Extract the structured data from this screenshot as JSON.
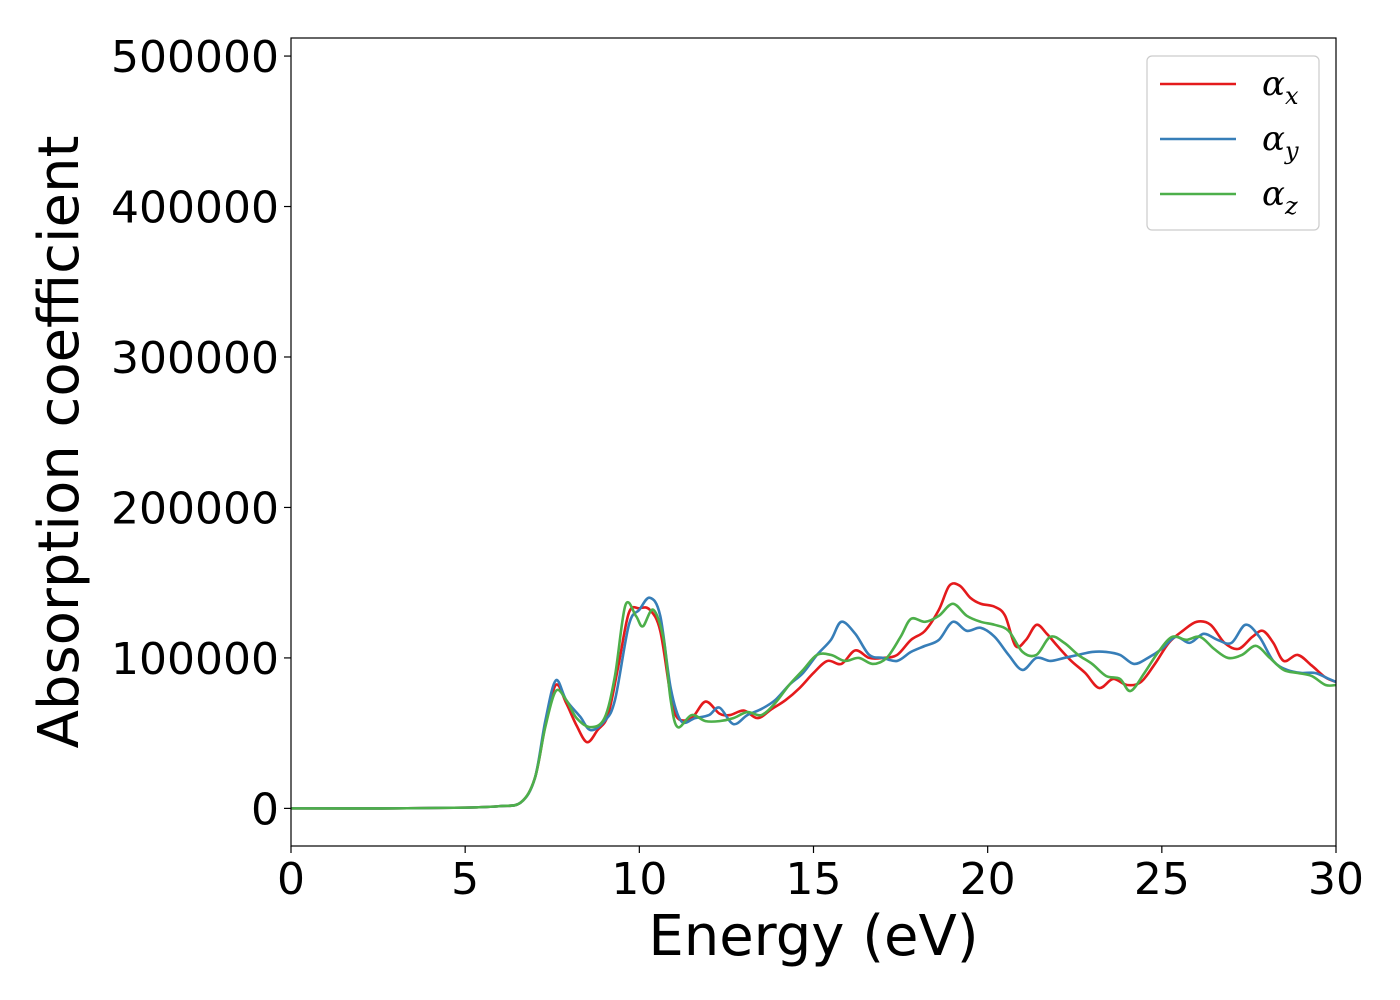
{
  "chart_data": {
    "type": "line",
    "xlabel": "Energy (eV)",
    "ylabel": "Absorption coefficient",
    "xlim": [
      0,
      30
    ],
    "ylim": [
      -25000,
      512000
    ],
    "xticks": [
      0,
      5,
      10,
      15,
      20,
      25,
      30
    ],
    "xtick_labels": [
      "0",
      "5",
      "10",
      "15",
      "20",
      "25",
      "30"
    ],
    "yticks": [
      0,
      100000,
      200000,
      300000,
      400000,
      500000
    ],
    "ytick_labels": [
      "0",
      "100000",
      "200000",
      "300000",
      "400000",
      "500000"
    ],
    "grid": false,
    "legend_position": "upper-right",
    "series": [
      {
        "name": "α",
        "subscript": "x",
        "color": "#e41a1c",
        "points": [
          [
            0,
            0
          ],
          [
            3,
            0
          ],
          [
            5,
            500
          ],
          [
            6,
            1500
          ],
          [
            6.6,
            4000
          ],
          [
            7.0,
            20000
          ],
          [
            7.3,
            55000
          ],
          [
            7.6,
            82000
          ],
          [
            7.9,
            70000
          ],
          [
            8.2,
            55000
          ],
          [
            8.5,
            44000
          ],
          [
            8.8,
            52000
          ],
          [
            9.1,
            62000
          ],
          [
            9.4,
            95000
          ],
          [
            9.7,
            130000
          ],
          [
            10.0,
            133000
          ],
          [
            10.3,
            132000
          ],
          [
            10.6,
            118000
          ],
          [
            10.9,
            75000
          ],
          [
            11.1,
            60000
          ],
          [
            11.5,
            60000
          ],
          [
            11.9,
            71000
          ],
          [
            12.3,
            63000
          ],
          [
            12.6,
            62000
          ],
          [
            13.0,
            65000
          ],
          [
            13.4,
            60000
          ],
          [
            13.8,
            66000
          ],
          [
            14.2,
            72000
          ],
          [
            14.6,
            80000
          ],
          [
            15.0,
            90000
          ],
          [
            15.4,
            98000
          ],
          [
            15.8,
            96000
          ],
          [
            16.2,
            105000
          ],
          [
            16.6,
            100000
          ],
          [
            17.0,
            100000
          ],
          [
            17.4,
            102000
          ],
          [
            17.8,
            112000
          ],
          [
            18.2,
            118000
          ],
          [
            18.6,
            132000
          ],
          [
            18.9,
            148000
          ],
          [
            19.2,
            148000
          ],
          [
            19.5,
            140000
          ],
          [
            19.8,
            136000
          ],
          [
            20.2,
            134000
          ],
          [
            20.5,
            128000
          ],
          [
            20.8,
            108000
          ],
          [
            21.1,
            112000
          ],
          [
            21.4,
            122000
          ],
          [
            21.7,
            116000
          ],
          [
            22.0,
            108000
          ],
          [
            22.4,
            98000
          ],
          [
            22.8,
            90000
          ],
          [
            23.2,
            80000
          ],
          [
            23.6,
            86000
          ],
          [
            24.0,
            82000
          ],
          [
            24.4,
            84000
          ],
          [
            24.8,
            96000
          ],
          [
            25.2,
            110000
          ],
          [
            25.6,
            118000
          ],
          [
            26.0,
            124000
          ],
          [
            26.4,
            122000
          ],
          [
            26.8,
            110000
          ],
          [
            27.2,
            106000
          ],
          [
            27.6,
            114000
          ],
          [
            27.9,
            118000
          ],
          [
            28.2,
            110000
          ],
          [
            28.5,
            98000
          ],
          [
            28.9,
            102000
          ],
          [
            29.3,
            95000
          ],
          [
            29.7,
            87000
          ],
          [
            30,
            84000
          ]
        ]
      },
      {
        "name": "α",
        "subscript": "y",
        "color": "#377eb8",
        "points": [
          [
            0,
            0
          ],
          [
            3,
            0
          ],
          [
            5,
            500
          ],
          [
            6,
            1500
          ],
          [
            6.6,
            4000
          ],
          [
            7.0,
            20000
          ],
          [
            7.3,
            58000
          ],
          [
            7.6,
            85000
          ],
          [
            7.9,
            72000
          ],
          [
            8.3,
            61000
          ],
          [
            8.6,
            52000
          ],
          [
            9.0,
            58000
          ],
          [
            9.3,
            72000
          ],
          [
            9.7,
            122000
          ],
          [
            10.0,
            132000
          ],
          [
            10.3,
            140000
          ],
          [
            10.6,
            128000
          ],
          [
            10.9,
            80000
          ],
          [
            11.2,
            58000
          ],
          [
            11.6,
            60000
          ],
          [
            12.0,
            62000
          ],
          [
            12.3,
            67000
          ],
          [
            12.7,
            56000
          ],
          [
            13.1,
            62000
          ],
          [
            13.5,
            66000
          ],
          [
            13.9,
            72000
          ],
          [
            14.3,
            82000
          ],
          [
            14.7,
            90000
          ],
          [
            15.1,
            102000
          ],
          [
            15.5,
            112000
          ],
          [
            15.8,
            124000
          ],
          [
            16.2,
            116000
          ],
          [
            16.6,
            102000
          ],
          [
            17.0,
            100000
          ],
          [
            17.4,
            98000
          ],
          [
            17.8,
            104000
          ],
          [
            18.2,
            108000
          ],
          [
            18.6,
            112000
          ],
          [
            19.0,
            124000
          ],
          [
            19.4,
            118000
          ],
          [
            19.8,
            120000
          ],
          [
            20.2,
            114000
          ],
          [
            20.6,
            102000
          ],
          [
            21.0,
            92000
          ],
          [
            21.4,
            100000
          ],
          [
            21.8,
            98000
          ],
          [
            22.2,
            100000
          ],
          [
            22.6,
            102000
          ],
          [
            23.0,
            104000
          ],
          [
            23.4,
            104000
          ],
          [
            23.8,
            102000
          ],
          [
            24.2,
            96000
          ],
          [
            24.6,
            100000
          ],
          [
            25.0,
            106000
          ],
          [
            25.4,
            114000
          ],
          [
            25.8,
            110000
          ],
          [
            26.2,
            116000
          ],
          [
            26.6,
            112000
          ],
          [
            27.0,
            110000
          ],
          [
            27.4,
            122000
          ],
          [
            27.8,
            114000
          ],
          [
            28.2,
            98000
          ],
          [
            28.6,
            92000
          ],
          [
            29.0,
            90000
          ],
          [
            29.4,
            90000
          ],
          [
            29.8,
            86000
          ],
          [
            30,
            84000
          ]
        ]
      },
      {
        "name": "α",
        "subscript": "z",
        "color": "#4daf4a",
        "points": [
          [
            0,
            0
          ],
          [
            3,
            0
          ],
          [
            5,
            500
          ],
          [
            6,
            1500
          ],
          [
            6.6,
            4000
          ],
          [
            7.0,
            20000
          ],
          [
            7.3,
            54000
          ],
          [
            7.6,
            78000
          ],
          [
            7.9,
            72000
          ],
          [
            8.2,
            60000
          ],
          [
            8.6,
            54000
          ],
          [
            9.0,
            60000
          ],
          [
            9.3,
            88000
          ],
          [
            9.6,
            135000
          ],
          [
            9.9,
            128000
          ],
          [
            10.1,
            121000
          ],
          [
            10.4,
            132000
          ],
          [
            10.7,
            112000
          ],
          [
            10.9,
            72000
          ],
          [
            11.1,
            54000
          ],
          [
            11.5,
            62000
          ],
          [
            11.9,
            58000
          ],
          [
            12.3,
            58000
          ],
          [
            12.7,
            60000
          ],
          [
            13.1,
            64000
          ],
          [
            13.5,
            62000
          ],
          [
            13.9,
            70000
          ],
          [
            14.3,
            82000
          ],
          [
            14.7,
            92000
          ],
          [
            15.1,
            102000
          ],
          [
            15.5,
            102000
          ],
          [
            15.9,
            98000
          ],
          [
            16.3,
            100000
          ],
          [
            16.7,
            96000
          ],
          [
            17.1,
            100000
          ],
          [
            17.5,
            114000
          ],
          [
            17.8,
            126000
          ],
          [
            18.2,
            124000
          ],
          [
            18.6,
            128000
          ],
          [
            19.0,
            136000
          ],
          [
            19.4,
            128000
          ],
          [
            19.8,
            124000
          ],
          [
            20.2,
            122000
          ],
          [
            20.6,
            118000
          ],
          [
            21.0,
            104000
          ],
          [
            21.4,
            102000
          ],
          [
            21.8,
            114000
          ],
          [
            22.2,
            110000
          ],
          [
            22.6,
            102000
          ],
          [
            23.0,
            96000
          ],
          [
            23.4,
            88000
          ],
          [
            23.8,
            86000
          ],
          [
            24.1,
            78000
          ],
          [
            24.5,
            90000
          ],
          [
            24.9,
            104000
          ],
          [
            25.3,
            114000
          ],
          [
            25.7,
            112000
          ],
          [
            26.1,
            114000
          ],
          [
            26.5,
            106000
          ],
          [
            26.9,
            100000
          ],
          [
            27.3,
            102000
          ],
          [
            27.7,
            108000
          ],
          [
            28.1,
            100000
          ],
          [
            28.5,
            92000
          ],
          [
            28.9,
            90000
          ],
          [
            29.3,
            88000
          ],
          [
            29.7,
            82000
          ],
          [
            30,
            82000
          ]
        ]
      }
    ]
  }
}
